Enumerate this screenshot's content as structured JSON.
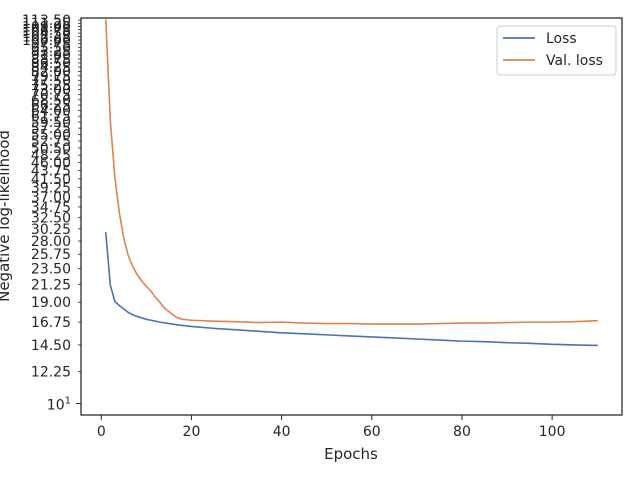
{
  "chart_data": {
    "type": "line",
    "title": "",
    "xlabel": "Epochs",
    "ylabel": "Negative log-likelihood",
    "xlim": [
      -4.5,
      115.5
    ],
    "ylim": [
      9.3,
      115.0
    ],
    "yscale": "log",
    "grid": false,
    "legend_position": "top-right",
    "x_ticks": [
      "0",
      "20",
      "40",
      "60",
      "80",
      "100"
    ],
    "x_tick_values": [
      0,
      20,
      40,
      60,
      80,
      100
    ],
    "y_tick_labels": [
      "113.50",
      "111.25",
      "109.00",
      "106.75",
      "104.50",
      "102.25",
      "100.00",
      "97.75",
      "95.50",
      "93.25",
      "91.00",
      "88.75",
      "86.50",
      "84.25",
      "82.00",
      "79.75",
      "77.50",
      "75.25",
      "73.00",
      "70.75",
      "68.50",
      "66.25",
      "64.00",
      "61.75",
      "59.50",
      "57.25",
      "55.00",
      "52.75",
      "50.50",
      "48.25",
      "46.00",
      "43.75",
      "41.50",
      "39.25",
      "37.00",
      "34.75",
      "32.50",
      "30.25",
      "28.00",
      "25.75",
      "23.50",
      "21.25",
      "19.00",
      "16.75",
      "14.50",
      "12.25"
    ],
    "y_tick_values": [
      113.5,
      111.25,
      109,
      106.75,
      104.5,
      102.25,
      100,
      97.75,
      95.5,
      93.25,
      91,
      88.75,
      86.5,
      84.25,
      82,
      79.75,
      77.5,
      75.25,
      73,
      70.75,
      68.5,
      66.25,
      64,
      61.75,
      59.5,
      57.25,
      55,
      52.75,
      50.5,
      48.25,
      46,
      43.75,
      41.5,
      39.25,
      37,
      34.75,
      32.5,
      30.25,
      28,
      25.75,
      23.5,
      21.25,
      19,
      16.75,
      14.5,
      12.25
    ],
    "y_major": {
      "base": "10",
      "exp": "1",
      "value": 10
    },
    "series": [
      {
        "name": "Loss",
        "color": "#4c72b0",
        "x": [
          1,
          2,
          3,
          4,
          5,
          6,
          7,
          8,
          9,
          10,
          11,
          12,
          13,
          15,
          17,
          20,
          25,
          30,
          35,
          40,
          45,
          50,
          55,
          60,
          65,
          70,
          75,
          80,
          85,
          90,
          95,
          100,
          105,
          110
        ],
        "y": [
          29.5,
          21.2,
          19.1,
          18.6,
          18.2,
          17.8,
          17.55,
          17.35,
          17.2,
          17.05,
          16.95,
          16.85,
          16.75,
          16.6,
          16.45,
          16.3,
          16.1,
          15.95,
          15.8,
          15.65,
          15.55,
          15.45,
          15.35,
          15.25,
          15.15,
          15.05,
          14.95,
          14.85,
          14.8,
          14.7,
          14.65,
          14.55,
          14.5,
          14.45
        ]
      },
      {
        "name": "Val. loss",
        "color": "#dd8452",
        "x": [
          1,
          2,
          3,
          4,
          5,
          6,
          7,
          8,
          9,
          10,
          11,
          12,
          13,
          14,
          15,
          16,
          17,
          18,
          20,
          25,
          30,
          35,
          40,
          45,
          50,
          55,
          60,
          65,
          70,
          75,
          80,
          85,
          90,
          95,
          100,
          105,
          110
        ],
        "y": [
          113.5,
          60.0,
          42.0,
          33.5,
          28.5,
          25.5,
          23.8,
          22.6,
          21.7,
          21.0,
          20.4,
          19.6,
          19.0,
          18.3,
          17.9,
          17.5,
          17.2,
          17.05,
          16.95,
          16.85,
          16.8,
          16.7,
          16.75,
          16.65,
          16.6,
          16.6,
          16.55,
          16.55,
          16.55,
          16.6,
          16.65,
          16.65,
          16.7,
          16.75,
          16.75,
          16.8,
          16.9
        ]
      }
    ]
  }
}
